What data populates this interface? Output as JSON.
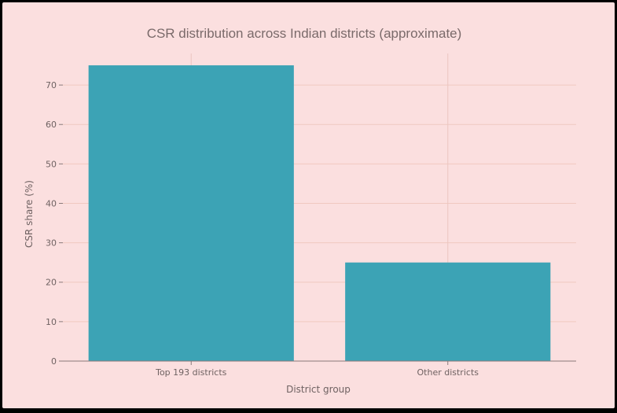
{
  "chart_data": {
    "type": "bar",
    "title": "CSR distribution across Indian districts (approximate)",
    "xlabel": "District group",
    "ylabel": "CSR share (%)",
    "categories": [
      "Top 193 districts",
      "Other districts"
    ],
    "values": [
      75,
      25
    ],
    "ylim": [
      0,
      78
    ],
    "yticks": [
      0,
      10,
      20,
      30,
      40,
      50,
      60,
      70
    ],
    "grid": true,
    "legend": "none",
    "colors": {
      "bar": "#3ca3b5",
      "background": "#fbdfdf",
      "frame": "#000000"
    }
  }
}
